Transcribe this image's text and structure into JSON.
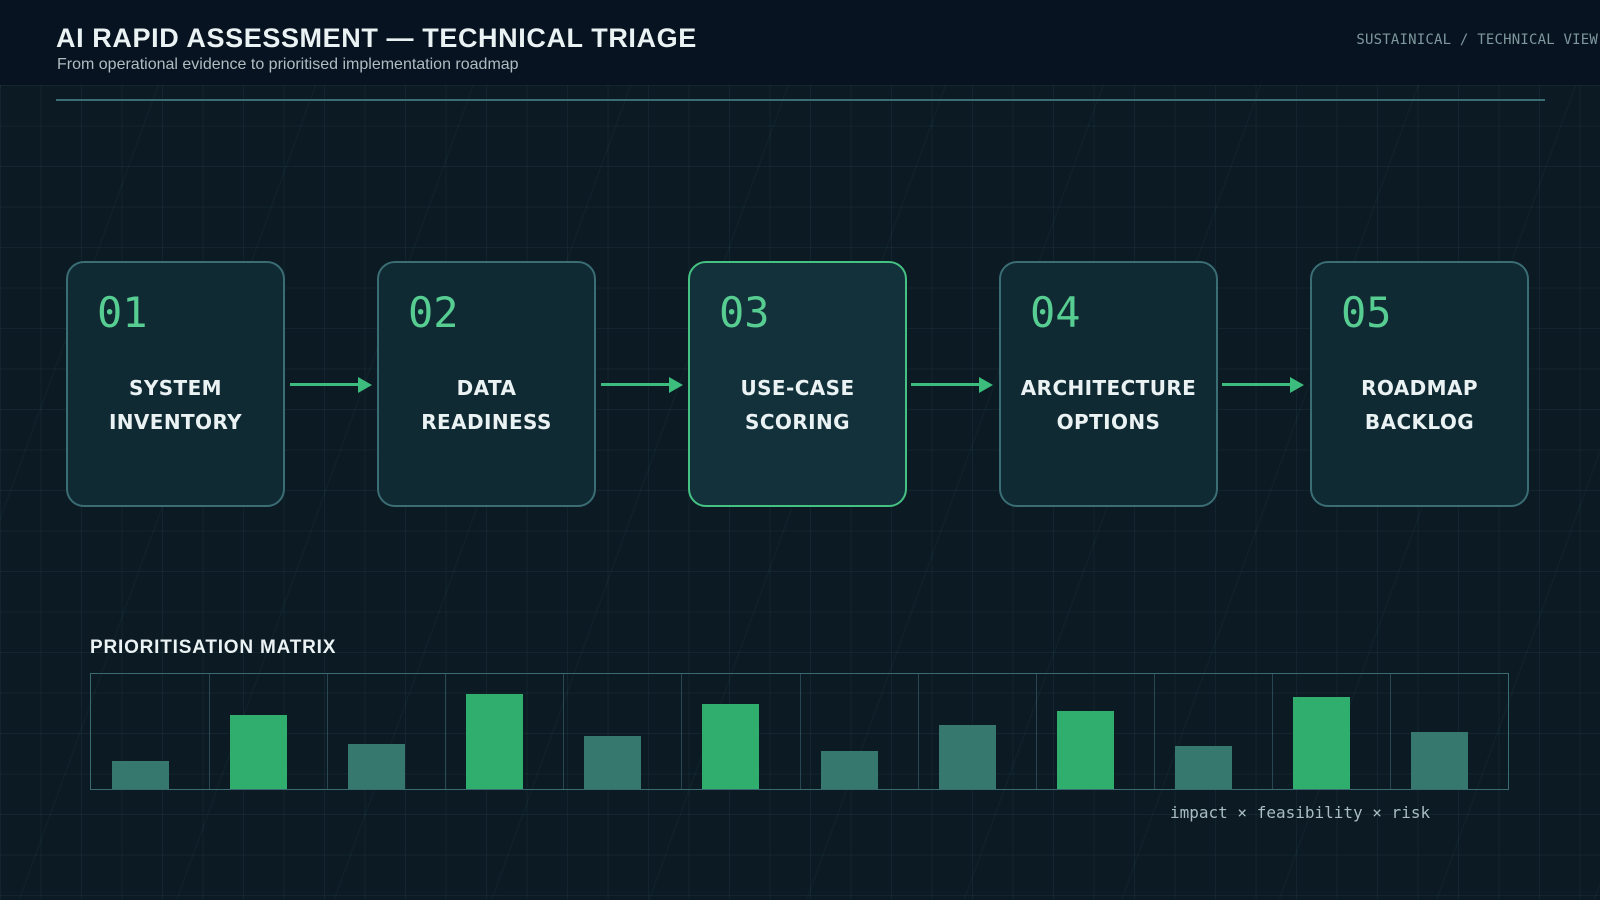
{
  "header": {
    "title": "AI RAPID ASSESSMENT — TECHNICAL TRIAGE",
    "subtitle": "From operational evidence to prioritised implementation roadmap",
    "corner_tag": "SUSTAINICAL / TECHNICAL VIEW"
  },
  "flow": {
    "active_index": 2,
    "steps": [
      {
        "number": "01",
        "label": "SYSTEM\nINVENTORY"
      },
      {
        "number": "02",
        "label": "DATA\nREADINESS"
      },
      {
        "number": "03",
        "label": "USE-CASE\nSCORING"
      },
      {
        "number": "04",
        "label": "ARCHITECTURE\nOPTIONS"
      },
      {
        "number": "05",
        "label": "ROADMAP\nBACKLOG"
      }
    ]
  },
  "matrix": {
    "section_label": "PRIORITISATION MATRIX",
    "caption": "impact × feasibility × risk"
  },
  "chart_data": {
    "type": "bar",
    "title": "PRIORITISATION MATRIX",
    "caption": "impact × feasibility × risk",
    "n_bars": 12,
    "values_pct": [
      24,
      64,
      39,
      83,
      46,
      74,
      33,
      56,
      68,
      37,
      80,
      50
    ],
    "highlight": [
      false,
      true,
      false,
      true,
      false,
      true,
      false,
      false,
      true,
      false,
      true,
      false
    ],
    "colors": {
      "bright": "#2fae6e",
      "dim": "#36786d"
    },
    "ylim": [
      0,
      100
    ],
    "xlabel": "",
    "ylabel": "",
    "legend": "none",
    "gridlines": "vertical cell dividers, 12 cells"
  },
  "colors": {
    "background": "#0b1a23",
    "header_background": "#071320",
    "accent_green": "#3dbd7d",
    "number_green": "#57cd92",
    "box_border": "#3b6d74",
    "box_fill": "#0f2a33",
    "active_border": "#45c183",
    "active_fill": "#12313a",
    "divider": "#3a6e75",
    "chart_frame": "#3a6b72",
    "bar_bright": "#2fae6e",
    "bar_dim": "#36786d",
    "text_primary": "#eaf2f3",
    "text_muted": "#aebdc2",
    "text_mono_dim": "#7e989e",
    "caption_color": "#a9bdc3"
  }
}
